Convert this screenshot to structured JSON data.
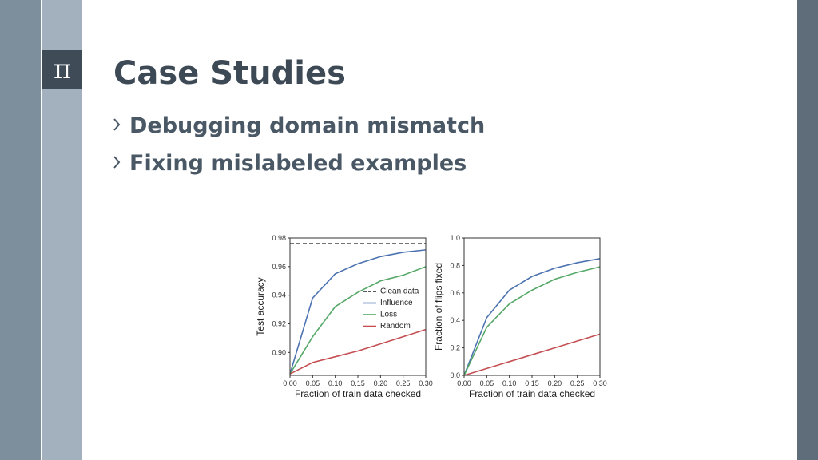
{
  "logo": "π",
  "title": "Case Studies",
  "bullets": [
    "Debugging domain mismatch",
    "Fixing mislabeled examples"
  ],
  "chart_data": [
    {
      "type": "line",
      "x": [
        0,
        0.05,
        0.1,
        0.15,
        0.2,
        0.25,
        0.3
      ],
      "xlabel": "Fraction of train data checked",
      "ylabel": "Test accuracy",
      "xlim": [
        0,
        0.3
      ],
      "ylim": [
        0.884,
        0.98
      ],
      "xticks": [
        {
          "value": 0,
          "label": "0.00"
        },
        0.05,
        {
          "value": 0.1,
          "label": "0.10"
        },
        0.15,
        {
          "value": 0.2,
          "label": "0.20"
        },
        0.25,
        {
          "value": 0.3,
          "label": "0.30"
        }
      ],
      "yticks": [
        {
          "value": 0.9,
          "label": "0.90"
        },
        0.92,
        0.94,
        0.96,
        0.98
      ],
      "legend": "right",
      "series": [
        {
          "name": "Clean data",
          "color": "#222222",
          "dashed": true,
          "values": [
            0.976,
            0.976,
            0.976,
            0.976,
            0.976,
            0.976,
            0.976
          ]
        },
        {
          "name": "Influence",
          "color": "#4c72b0",
          "values": [
            0.885,
            0.938,
            0.955,
            0.962,
            0.967,
            0.97,
            0.9717
          ]
        },
        {
          "name": "Loss",
          "color": "#55a868",
          "values": [
            0.885,
            0.911,
            0.932,
            0.942,
            0.95,
            0.954,
            0.96
          ]
        },
        {
          "name": "Random",
          "color": "#c44e52",
          "values": [
            0.885,
            0.893,
            0.897,
            0.901,
            0.906,
            0.911,
            0.916
          ]
        }
      ]
    },
    {
      "type": "line",
      "x": [
        0,
        0.05,
        0.1,
        0.15,
        0.2,
        0.25,
        0.3
      ],
      "xlabel": "Fraction of train data checked",
      "ylabel": "Fraction of flips fixed",
      "xlim": [
        0,
        0.3
      ],
      "ylim": [
        0,
        1
      ],
      "xticks": [
        {
          "value": 0,
          "label": "0.00"
        },
        0.05,
        {
          "value": 0.1,
          "label": "0.10"
        },
        0.15,
        {
          "value": 0.2,
          "label": "0.20"
        },
        0.25,
        {
          "value": 0.3,
          "label": "0.30"
        }
      ],
      "yticks": [
        {
          "value": 0,
          "label": "0.0"
        },
        0.2,
        0.4,
        0.6,
        0.8,
        {
          "value": 1,
          "label": "1.0"
        }
      ],
      "series": [
        {
          "color": "#4c72b0",
          "values": [
            0,
            0.42,
            0.62,
            0.72,
            0.78,
            0.82,
            0.85
          ]
        },
        {
          "color": "#55a868",
          "values": [
            0,
            0.35,
            0.52,
            0.62,
            0.7,
            0.75,
            0.79
          ]
        },
        {
          "color": "#c44e52",
          "values": [
            0,
            0.05,
            0.1,
            0.15,
            0.2,
            0.25,
            0.3
          ]
        }
      ]
    }
  ]
}
